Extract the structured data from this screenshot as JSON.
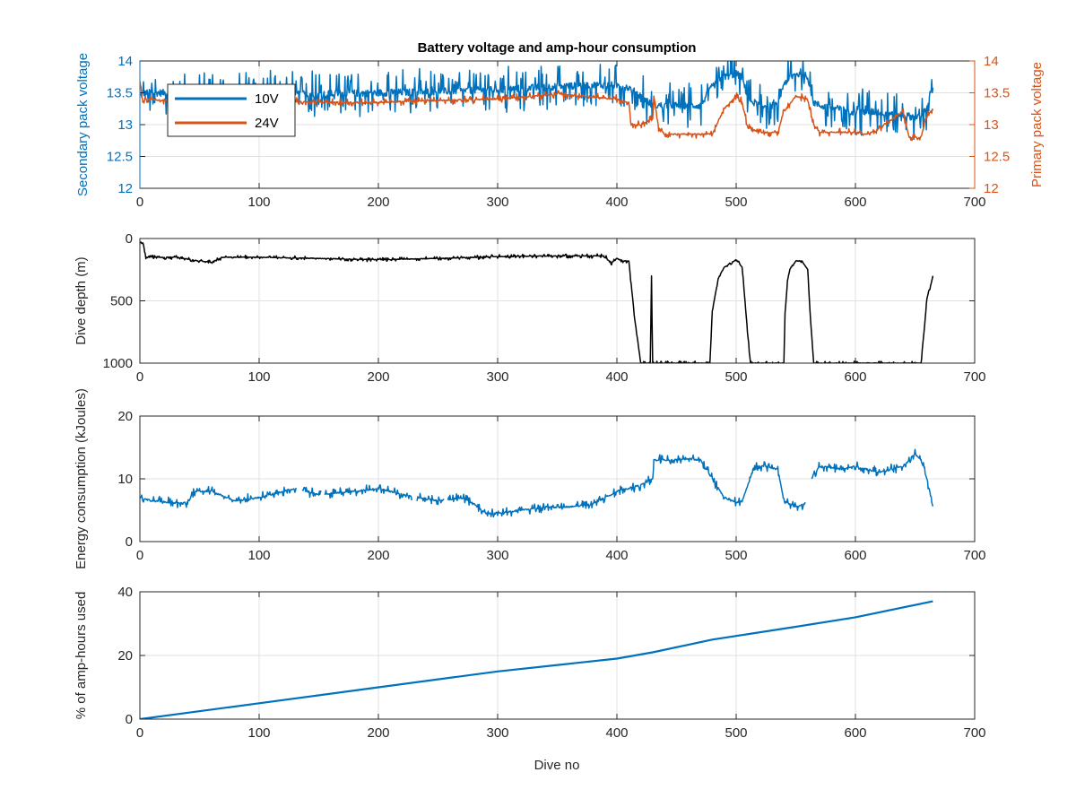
{
  "figure": {
    "title": "Battery voltage and amp-hour consumption",
    "xlabel": "Dive no"
  },
  "colors": {
    "blue": "#0072BD",
    "orange": "#D95319",
    "black": "#000000",
    "grid": "#e1e1e1",
    "axis": "#262626"
  },
  "chart_data": [
    {
      "type": "line",
      "ylabel": "Secondary pack voltage",
      "ylabel_right": "Primary pack voltage",
      "xlim": [
        0,
        700
      ],
      "ylim": [
        12,
        14
      ],
      "ylim_right": [
        12,
        14
      ],
      "xticks": [
        "0",
        "100",
        "200",
        "300",
        "400",
        "500",
        "600",
        "700"
      ],
      "yticks": [
        "12",
        "12.5",
        "13",
        "13.5",
        "14"
      ],
      "yticks_right": [
        "12",
        "12.5",
        "13",
        "13.5",
        "14"
      ],
      "grid": true,
      "legend": {
        "placement": "top-left",
        "entries": [
          "10V",
          "24V"
        ]
      },
      "series": [
        {
          "name": "10V",
          "axis": "left",
          "style": "noisy",
          "amplitude": 0.22,
          "x": [
            0,
            5,
            10,
            50,
            100,
            150,
            200,
            250,
            300,
            350,
            380,
            400,
            410,
            420,
            430,
            440,
            470,
            480,
            490,
            500,
            505,
            510,
            520,
            530,
            535,
            540,
            550,
            560,
            565,
            570,
            600,
            620,
            640,
            655,
            660,
            663,
            665
          ],
          "y": [
            13.45,
            13.5,
            13.5,
            13.5,
            13.5,
            13.48,
            13.5,
            13.52,
            13.55,
            13.6,
            13.62,
            13.62,
            13.58,
            13.45,
            13.3,
            13.3,
            13.3,
            13.6,
            13.75,
            13.8,
            13.75,
            13.4,
            13.3,
            13.3,
            13.3,
            13.65,
            13.8,
            13.75,
            13.35,
            13.3,
            13.2,
            13.2,
            13.15,
            13.1,
            13.3,
            13.5,
            13.55
          ]
        },
        {
          "name": "24V",
          "axis": "right",
          "style": "noisy",
          "amplitude": 0.04,
          "x": [
            0,
            2,
            5,
            20,
            50,
            100,
            150,
            200,
            250,
            300,
            350,
            400,
            410,
            412,
            420,
            430,
            431,
            435,
            440,
            470,
            480,
            490,
            500,
            505,
            510,
            520,
            535,
            540,
            550,
            560,
            565,
            570,
            600,
            610,
            620,
            640,
            645,
            655,
            660,
            665
          ],
          "y": [
            13.7,
            13.35,
            13.4,
            13.38,
            13.38,
            13.38,
            13.35,
            13.35,
            13.38,
            13.4,
            13.48,
            13.4,
            13.35,
            13.0,
            13.0,
            13.1,
            13.45,
            12.95,
            12.85,
            12.85,
            12.85,
            13.25,
            13.45,
            13.35,
            12.95,
            12.88,
            12.88,
            13.2,
            13.45,
            13.4,
            13.0,
            12.88,
            12.88,
            12.85,
            12.95,
            13.2,
            12.8,
            12.8,
            13.15,
            13.25
          ]
        }
      ]
    },
    {
      "type": "line",
      "ylabel": "Dive depth (m)",
      "xlim": [
        0,
        700
      ],
      "ylim": [
        0,
        1000
      ],
      "y_reversed": true,
      "xticks": [
        "0",
        "100",
        "200",
        "300",
        "400",
        "500",
        "600",
        "700"
      ],
      "yticks": [
        "0",
        "500",
        "1000"
      ],
      "grid": true,
      "series": [
        {
          "color": "black",
          "style": "noisy",
          "amplitude": 10,
          "x": [
            0,
            3,
            5,
            10,
            30,
            50,
            60,
            70,
            100,
            150,
            200,
            250,
            300,
            350,
            390,
            395,
            400,
            405,
            410,
            415,
            420,
            425,
            428,
            429,
            430,
            431,
            432,
            435,
            470,
            478,
            480,
            485,
            490,
            495,
            500,
            505,
            510,
            512,
            540,
            541,
            543,
            545,
            550,
            555,
            560,
            562,
            565,
            600,
            640,
            655,
            658,
            660,
            663,
            665
          ],
          "y": [
            30,
            50,
            150,
            150,
            150,
            180,
            190,
            150,
            150,
            160,
            170,
            160,
            145,
            140,
            140,
            200,
            160,
            180,
            180,
            650,
            1000,
            1000,
            1000,
            300,
            1000,
            1000,
            1000,
            1000,
            1000,
            1000,
            580,
            320,
            230,
            200,
            170,
            230,
            800,
            1000,
            1000,
            600,
            340,
            250,
            180,
            180,
            250,
            600,
            1000,
            1000,
            1000,
            1000,
            700,
            480,
            380,
            300
          ]
        }
      ]
    },
    {
      "type": "line",
      "ylabel": "Energy consumption (kJoules)",
      "xlim": [
        0,
        700
      ],
      "ylim": [
        0,
        20
      ],
      "xticks": [
        "0",
        "100",
        "200",
        "300",
        "400",
        "500",
        "600",
        "700"
      ],
      "yticks": [
        "0",
        "10",
        "20"
      ],
      "grid": true,
      "series": [
        {
          "color": "blue",
          "style": "noisy",
          "amplitude": 0.5,
          "gaps": [
            [
              131,
              136
            ],
            [
              152,
              155
            ],
            [
              228,
              232
            ],
            [
              255,
              258
            ],
            [
              558,
              563
            ]
          ],
          "x": [
            0,
            10,
            40,
            45,
            60,
            80,
            100,
            130,
            150,
            180,
            200,
            220,
            250,
            270,
            280,
            290,
            300,
            320,
            340,
            360,
            380,
            400,
            410,
            420,
            430,
            431,
            445,
            460,
            470,
            480,
            490,
            500,
            505,
            510,
            515,
            520,
            525,
            535,
            540,
            550,
            558,
            563,
            570,
            590,
            600,
            620,
            640,
            650,
            655,
            660,
            665
          ],
          "y": [
            7,
            6.5,
            6,
            8,
            8,
            6.5,
            7,
            8.5,
            7.5,
            8,
            8.5,
            7.5,
            6.5,
            7,
            6,
            4.5,
            4.5,
            5,
            5.5,
            5.5,
            6,
            8,
            8.5,
            9,
            10,
            13,
            13,
            13.2,
            13,
            10,
            7,
            6.2,
            6.5,
            9,
            12,
            12,
            12,
            11.5,
            6.5,
            5.5,
            6,
            10,
            12,
            11.5,
            12,
            11,
            12,
            14,
            13,
            10,
            5.5
          ]
        }
      ]
    },
    {
      "type": "line",
      "ylabel": "% of amp-hours used",
      "xlabel": "Dive no",
      "xlim": [
        0,
        700
      ],
      "ylim": [
        0,
        40
      ],
      "xticks": [
        "0",
        "100",
        "200",
        "300",
        "400",
        "500",
        "600",
        "700"
      ],
      "yticks": [
        "0",
        "20",
        "40"
      ],
      "grid": true,
      "series": [
        {
          "color": "blue",
          "style": "smooth",
          "x": [
            0,
            100,
            200,
            300,
            400,
            430,
            480,
            550,
            600,
            665
          ],
          "y": [
            0,
            5,
            10,
            15,
            19,
            21,
            25,
            29,
            32,
            37
          ]
        }
      ]
    }
  ]
}
